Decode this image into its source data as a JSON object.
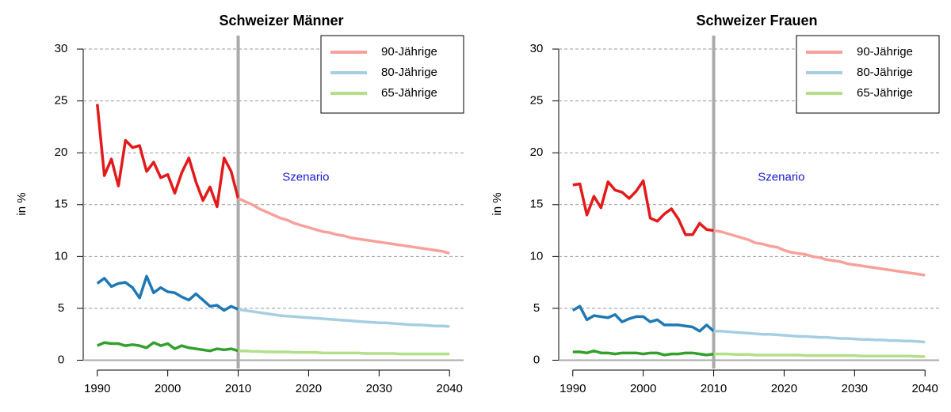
{
  "chart_data": [
    {
      "type": "line",
      "title": "Schweizer Männer",
      "ylabel": "in %",
      "annotation": "Szenario",
      "x": [
        1990,
        1991,
        1992,
        1993,
        1994,
        1995,
        1996,
        1997,
        1998,
        1999,
        2000,
        2001,
        2002,
        2003,
        2004,
        2005,
        2006,
        2007,
        2008,
        2009,
        2010,
        2011,
        2012,
        2013,
        2014,
        2015,
        2016,
        2017,
        2018,
        2019,
        2020,
        2021,
        2022,
        2023,
        2024,
        2025,
        2026,
        2027,
        2028,
        2029,
        2030,
        2031,
        2032,
        2033,
        2034,
        2035,
        2036,
        2037,
        2038,
        2039,
        2040
      ],
      "scenario_from": 2010,
      "series": [
        {
          "name": "90-Jährige",
          "color": "#f8a09c",
          "history_color": "#e31a1c",
          "values": [
            24.7,
            17.8,
            19.4,
            16.8,
            21.2,
            20.5,
            20.7,
            18.2,
            19.1,
            17.6,
            17.9,
            16.1,
            18.1,
            19.5,
            17.2,
            15.4,
            16.7,
            14.8,
            19.5,
            18.2,
            15.6,
            15.3,
            15.0,
            14.6,
            14.3,
            14.0,
            13.7,
            13.5,
            13.2,
            13.0,
            12.8,
            12.6,
            12.4,
            12.3,
            12.1,
            12.0,
            11.8,
            11.7,
            11.6,
            11.5,
            11.4,
            11.3,
            11.2,
            11.1,
            11.0,
            10.9,
            10.8,
            10.7,
            10.6,
            10.5,
            10.3
          ]
        },
        {
          "name": "80-Jährige",
          "color": "#a6cee3",
          "history_color": "#1f78b4",
          "values": [
            7.4,
            7.9,
            7.1,
            7.4,
            7.5,
            7.0,
            6.0,
            8.1,
            6.5,
            7.0,
            6.6,
            6.5,
            6.1,
            5.8,
            6.4,
            5.8,
            5.2,
            5.3,
            4.8,
            5.2,
            4.9,
            4.8,
            4.7,
            4.6,
            4.5,
            4.4,
            4.3,
            4.25,
            4.2,
            4.15,
            4.1,
            4.05,
            4.0,
            3.95,
            3.9,
            3.85,
            3.8,
            3.75,
            3.7,
            3.65,
            3.6,
            3.6,
            3.55,
            3.5,
            3.45,
            3.4,
            3.4,
            3.35,
            3.3,
            3.3,
            3.25
          ]
        },
        {
          "name": "65-Jährige",
          "color": "#b2df8a",
          "history_color": "#33a02c",
          "values": [
            1.4,
            1.7,
            1.6,
            1.6,
            1.4,
            1.5,
            1.4,
            1.2,
            1.7,
            1.4,
            1.6,
            1.1,
            1.4,
            1.2,
            1.1,
            1.0,
            0.9,
            1.1,
            1.0,
            1.1,
            0.9,
            0.9,
            0.85,
            0.85,
            0.8,
            0.8,
            0.8,
            0.8,
            0.75,
            0.75,
            0.75,
            0.75,
            0.7,
            0.7,
            0.7,
            0.7,
            0.7,
            0.7,
            0.65,
            0.65,
            0.65,
            0.65,
            0.65,
            0.6,
            0.6,
            0.6,
            0.6,
            0.6,
            0.6,
            0.6,
            0.6
          ]
        }
      ],
      "xlim": [
        1988,
        2042
      ],
      "xticks": [
        1990,
        2000,
        2010,
        2020,
        2030,
        2040
      ],
      "ylim": [
        -0.8,
        31.3
      ],
      "yticks": [
        0,
        5,
        10,
        15,
        20,
        25,
        30
      ],
      "grid": true,
      "legend": "topright"
    },
    {
      "type": "line",
      "title": "Schweizer Frauen",
      "ylabel": "in %",
      "annotation": "Szenario",
      "x": [
        1990,
        1991,
        1992,
        1993,
        1994,
        1995,
        1996,
        1997,
        1998,
        1999,
        2000,
        2001,
        2002,
        2003,
        2004,
        2005,
        2006,
        2007,
        2008,
        2009,
        2010,
        2011,
        2012,
        2013,
        2014,
        2015,
        2016,
        2017,
        2018,
        2019,
        2020,
        2021,
        2022,
        2023,
        2024,
        2025,
        2026,
        2027,
        2028,
        2029,
        2030,
        2031,
        2032,
        2033,
        2034,
        2035,
        2036,
        2037,
        2038,
        2039,
        2040
      ],
      "scenario_from": 2010,
      "series": [
        {
          "name": "90-Jährige",
          "color": "#f8a09c",
          "history_color": "#e31a1c",
          "values": [
            16.9,
            17.0,
            14.0,
            15.8,
            14.7,
            17.2,
            16.4,
            16.2,
            15.6,
            16.3,
            17.3,
            13.7,
            13.4,
            14.1,
            14.6,
            13.6,
            12.1,
            12.1,
            13.2,
            12.6,
            12.5,
            12.4,
            12.2,
            12.0,
            11.8,
            11.6,
            11.3,
            11.2,
            11.0,
            10.9,
            10.6,
            10.4,
            10.3,
            10.2,
            10.0,
            9.9,
            9.7,
            9.6,
            9.5,
            9.3,
            9.2,
            9.1,
            9.0,
            8.9,
            8.8,
            8.7,
            8.6,
            8.5,
            8.4,
            8.3,
            8.2
          ]
        },
        {
          "name": "80-Jährige",
          "color": "#a6cee3",
          "history_color": "#1f78b4",
          "values": [
            4.8,
            5.2,
            3.9,
            4.3,
            4.2,
            4.1,
            4.4,
            3.7,
            4.0,
            4.2,
            4.2,
            3.7,
            3.9,
            3.4,
            3.4,
            3.4,
            3.3,
            3.2,
            2.8,
            3.4,
            2.8,
            2.8,
            2.75,
            2.7,
            2.65,
            2.6,
            2.55,
            2.5,
            2.5,
            2.45,
            2.4,
            2.35,
            2.3,
            2.3,
            2.25,
            2.2,
            2.2,
            2.15,
            2.1,
            2.1,
            2.05,
            2.0,
            2.0,
            1.95,
            1.95,
            1.9,
            1.9,
            1.85,
            1.85,
            1.8,
            1.75
          ]
        },
        {
          "name": "65-Jährige",
          "color": "#b2df8a",
          "history_color": "#33a02c",
          "values": [
            0.8,
            0.8,
            0.7,
            0.9,
            0.7,
            0.7,
            0.6,
            0.7,
            0.7,
            0.7,
            0.6,
            0.7,
            0.7,
            0.5,
            0.6,
            0.6,
            0.7,
            0.7,
            0.6,
            0.5,
            0.6,
            0.6,
            0.6,
            0.55,
            0.55,
            0.55,
            0.5,
            0.5,
            0.5,
            0.5,
            0.5,
            0.5,
            0.5,
            0.45,
            0.45,
            0.45,
            0.45,
            0.45,
            0.45,
            0.45,
            0.45,
            0.4,
            0.4,
            0.4,
            0.4,
            0.4,
            0.4,
            0.4,
            0.4,
            0.35,
            0.35
          ]
        }
      ],
      "xlim": [
        1988,
        2042
      ],
      "xticks": [
        1990,
        2000,
        2010,
        2020,
        2030,
        2040
      ],
      "ylim": [
        -0.8,
        31.3
      ],
      "yticks": [
        0,
        5,
        10,
        15,
        20,
        25,
        30
      ],
      "grid": true,
      "legend": "topright"
    }
  ]
}
